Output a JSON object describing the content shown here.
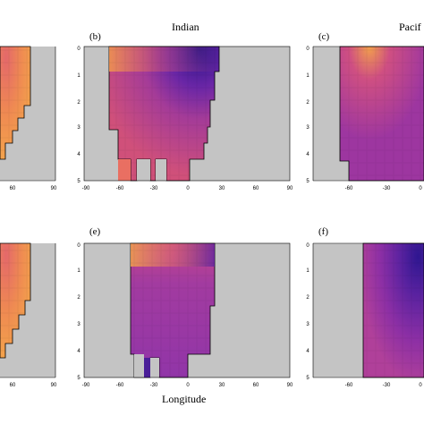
{
  "figure": {
    "col_titles": [
      "Indian",
      "Pacif"
    ],
    "xlabel": "Longitude",
    "panels": [
      {
        "key": "a",
        "label": "",
        "x_ticks": [
          "60",
          "90"
        ],
        "y_ticks": []
      },
      {
        "key": "b",
        "label": "(b)",
        "x_ticks": [
          "-90",
          "-60",
          "-30",
          "0",
          "30",
          "60",
          "90"
        ],
        "y_ticks": [
          "0",
          "1",
          "2",
          "3",
          "4",
          "5"
        ]
      },
      {
        "key": "c",
        "label": "(c)",
        "x_ticks": [
          "-60",
          "-30",
          "0"
        ],
        "y_ticks": [
          "0",
          "1",
          "2",
          "3",
          "4",
          "5"
        ]
      },
      {
        "key": "d",
        "label": "",
        "x_ticks": [
          "60",
          "90"
        ],
        "y_ticks": []
      },
      {
        "key": "e",
        "label": "(e)",
        "x_ticks": [
          "-90",
          "-60",
          "-30",
          "0",
          "30",
          "60",
          "90"
        ],
        "y_ticks": [
          "0",
          "1",
          "2",
          "3",
          "4",
          "5"
        ]
      },
      {
        "key": "f",
        "label": "(f)",
        "x_ticks": [
          "-60",
          "-30",
          "0"
        ],
        "y_ticks": [
          "0",
          "1",
          "2",
          "3",
          "4",
          "5"
        ]
      }
    ]
  },
  "colors": {
    "land": "#c4c4c4",
    "orange": "#f2a04a",
    "magenta": "#c0438a",
    "purple": "#8e2aa2",
    "deep_purple": "#3a1890"
  },
  "chart_data": [
    {
      "type": "heatmap",
      "panel": "a",
      "x_ticks": [
        60,
        90
      ],
      "description_values": "warm orange shelf field"
    },
    {
      "type": "heatmap",
      "panel": "b",
      "title": "Indian",
      "x_range": [
        -90,
        90
      ],
      "y_range": [
        0,
        5
      ],
      "x_ticks": [
        -90,
        -60,
        -30,
        0,
        30,
        60,
        90
      ],
      "y_ticks": [
        0,
        1,
        2,
        3,
        4,
        5
      ]
    },
    {
      "type": "heatmap",
      "panel": "c",
      "title": "Pacif",
      "x_ticks": [
        -60,
        -30,
        0
      ],
      "y_ticks": [
        0,
        1,
        2,
        3,
        4,
        5
      ]
    },
    {
      "type": "heatmap",
      "panel": "d",
      "x_ticks": [
        60,
        90
      ]
    },
    {
      "type": "heatmap",
      "panel": "e",
      "xlabel": "Longitude",
      "x_range": [
        -90,
        90
      ],
      "y_range": [
        0,
        5
      ],
      "x_ticks": [
        -90,
        -60,
        -30,
        0,
        30,
        60,
        90
      ],
      "y_ticks": [
        0,
        1,
        2,
        3,
        4,
        5
      ]
    },
    {
      "type": "heatmap",
      "panel": "f",
      "x_ticks": [
        -60,
        -30,
        0
      ],
      "y_ticks": [
        0,
        1,
        2,
        3,
        4,
        5
      ]
    }
  ]
}
